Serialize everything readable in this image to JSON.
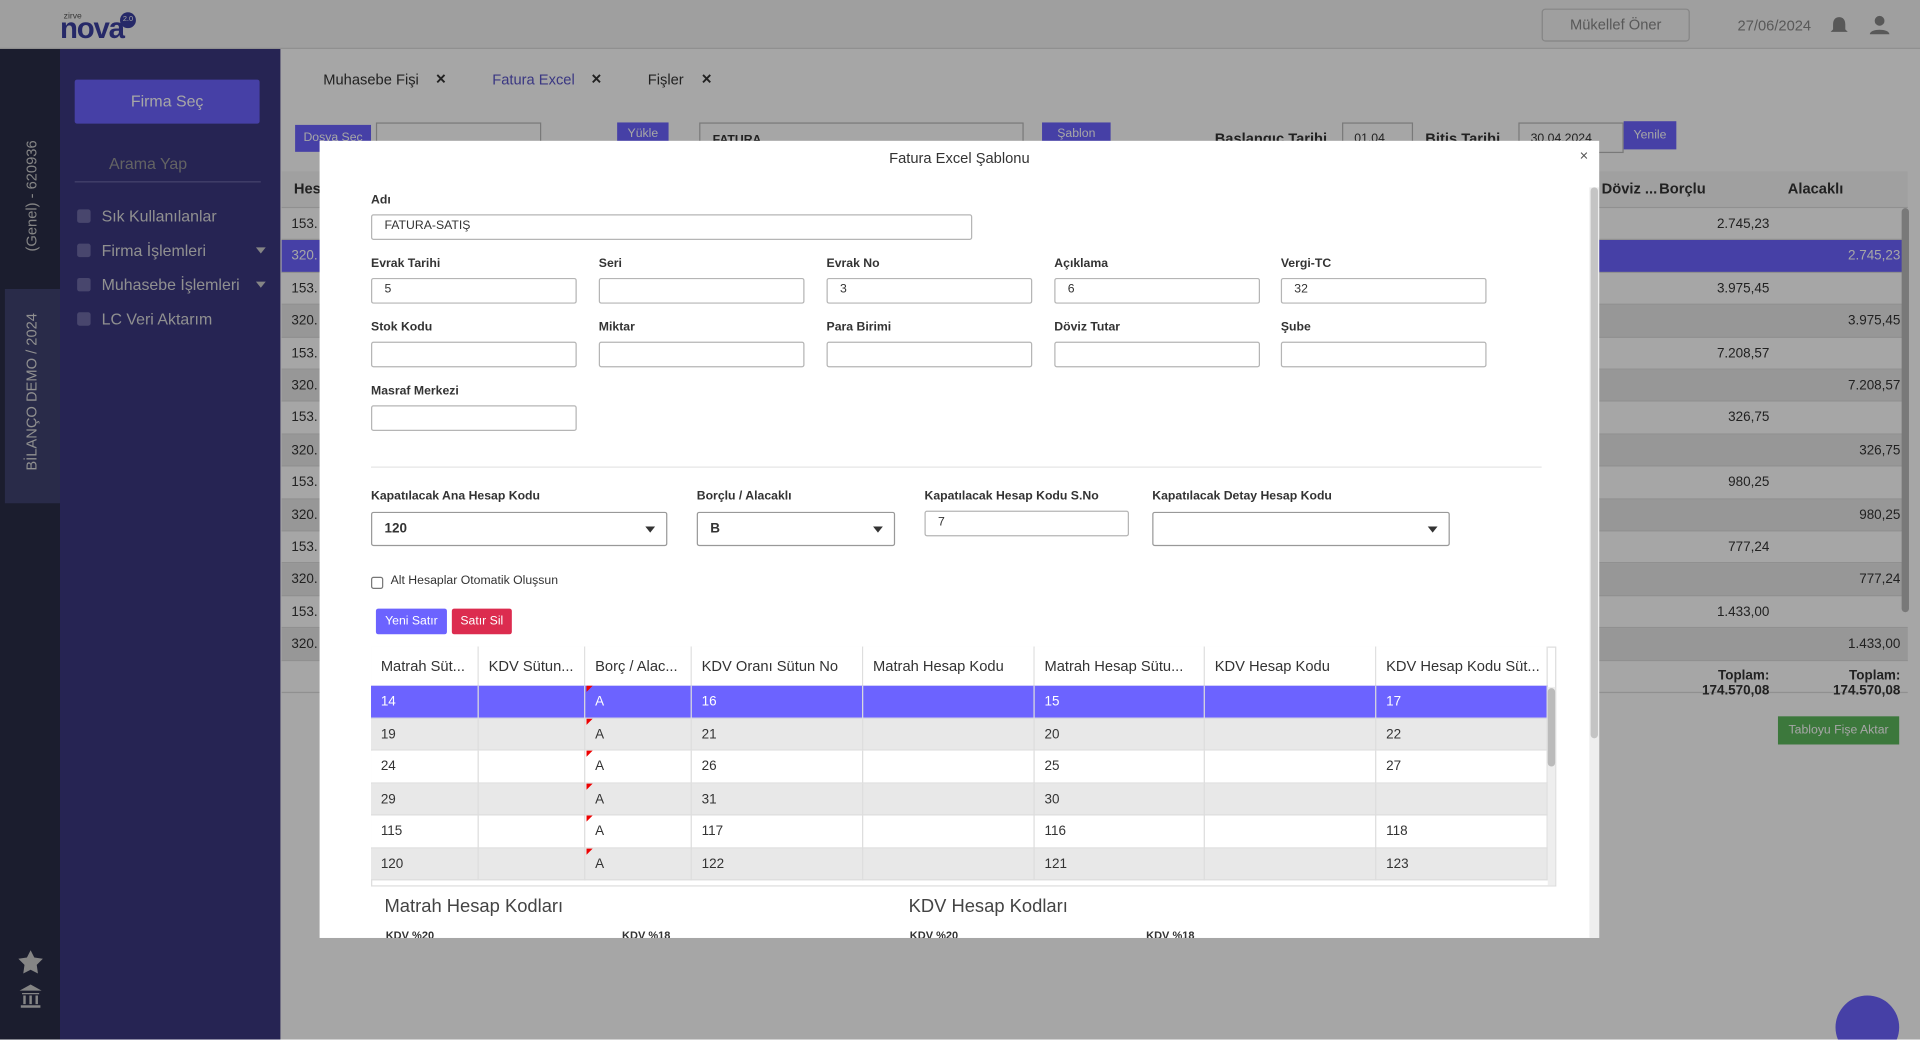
{
  "header": {
    "brand_top": "zirve",
    "brand": "nova",
    "version": "2.0",
    "button": "Mükellef Öner",
    "date": "27/06/2024"
  },
  "side_strip": {
    "company": "(Genel) - 620936",
    "period": "BİLANÇO DEMO / 2024"
  },
  "menu": {
    "firm_button": "Firma Seç",
    "search_placeholder": "Arama Yap",
    "items": [
      {
        "label": "Sık Kullanılanlar"
      },
      {
        "label": "Firma İşlemleri",
        "caret": true
      },
      {
        "label": "Muhasebe İşlemleri",
        "caret": true
      },
      {
        "label": "LC Veri Aktarım"
      }
    ]
  },
  "tabs": [
    {
      "label": "Muhasebe Fişi"
    },
    {
      "label": "Fatura Excel",
      "active": true
    },
    {
      "label": "Fişler"
    }
  ],
  "toolbar": {
    "file_button": "Dosya Seç",
    "upload": "Yükle",
    "type": "FATURA",
    "template": "Şablon",
    "start_label": "Başlangıç Tarihi",
    "start": "01.04",
    "end_label": "Bitiş Tarihi",
    "end": "30.04.2024",
    "refresh": "Yenile"
  },
  "table": {
    "columns": [
      "Hes",
      "Döviz ...",
      "Borçlu",
      "Alacaklı"
    ],
    "rows": [
      {
        "code": "153.",
        "debit": "2.745,23"
      },
      {
        "code": "320.",
        "credit": "2.745,23",
        "selected": true
      },
      {
        "code": "153.",
        "debit": "3.975,45"
      },
      {
        "code": "320.",
        "credit": "3.975,45"
      },
      {
        "code": "153.",
        "debit": "7.208,57"
      },
      {
        "code": "320.",
        "credit": "7.208,57"
      },
      {
        "code": "153.",
        "debit": "326,75"
      },
      {
        "code": "320.",
        "credit": "326,75"
      },
      {
        "code": "153.",
        "debit": "980,25"
      },
      {
        "code": "320.",
        "credit": "980,25"
      },
      {
        "code": "153.",
        "debit": "777,24"
      },
      {
        "code": "320.",
        "credit": "777,24"
      },
      {
        "code": "153.",
        "debit": "1.433,00"
      },
      {
        "code": "320.",
        "credit": "1.433,00"
      }
    ],
    "totals": [
      "Toplam: 174.570,08",
      "Toplam: 174.570,08"
    ],
    "export_button": "Tabloyu Fişe Aktar"
  },
  "modal": {
    "title": "Fatura Excel Şablonu",
    "name_label": "Adı",
    "name": "FATURA-SATIŞ",
    "fields": [
      [
        {
          "label": "Evrak Tarihi",
          "value": "5"
        },
        {
          "label": "Seri"
        },
        {
          "label": "Evrak No",
          "value": "3"
        },
        {
          "label": "Açıklama",
          "value": "6"
        },
        {
          "label": "Vergi-TC",
          "value": "32"
        }
      ],
      [
        {
          "label": "Stok Kodu"
        },
        {
          "label": "Miktar"
        },
        {
          "label": "Para Birimi"
        },
        {
          "label": "Döviz Tutar"
        },
        {
          "label": "Şube"
        }
      ],
      [
        {
          "label": "Masraf Merkezi"
        }
      ]
    ],
    "closing": [
      {
        "label": "Kapatılacak Ana Hesap Kodu",
        "value": "120",
        "kind": "select"
      },
      {
        "label": "Borçlu / Alacaklı",
        "value": "B",
        "kind": "select"
      },
      {
        "label": "Kapatılacak Hesap Kodu S.No",
        "value": "7",
        "kind": "input"
      },
      {
        "label": "Kapatılacak Detay Hesap Kodu",
        "kind": "select"
      }
    ],
    "checkbox": "Alt Hesaplar Otomatik Oluşsun",
    "add_button": "Yeni Satır",
    "delete_button": "Satır Sil",
    "grid": {
      "columns": [
        "Matrah Süt...",
        "KDV Sütun...",
        "Borç / Alac...",
        "KDV Oranı Sütun No",
        "Matrah Hesap Kodu",
        "Matrah Hesap Sütu...",
        "KDV Hesap Kodu",
        "KDV Hesap Kodu Süt..."
      ],
      "rows": [
        [
          14,
          null,
          "A",
          16,
          null,
          15,
          null,
          17
        ],
        [
          19,
          null,
          "A",
          21,
          null,
          20,
          null,
          22
        ],
        [
          24,
          null,
          "A",
          26,
          null,
          25,
          null,
          27
        ],
        [
          29,
          null,
          "A",
          31,
          null,
          30,
          null,
          null
        ],
        [
          115,
          null,
          "A",
          117,
          null,
          116,
          null,
          118
        ],
        [
          120,
          null,
          "A",
          122,
          null,
          121,
          null,
          123
        ]
      ]
    },
    "sections": [
      {
        "title": "Matrah Hesap Kodları",
        "subs": [
          "KDV %20",
          "KDV %18"
        ]
      },
      {
        "title": "KDV Hesap Kodları",
        "subs": [
          "KDV %20",
          "KDV %18"
        ]
      }
    ]
  }
}
